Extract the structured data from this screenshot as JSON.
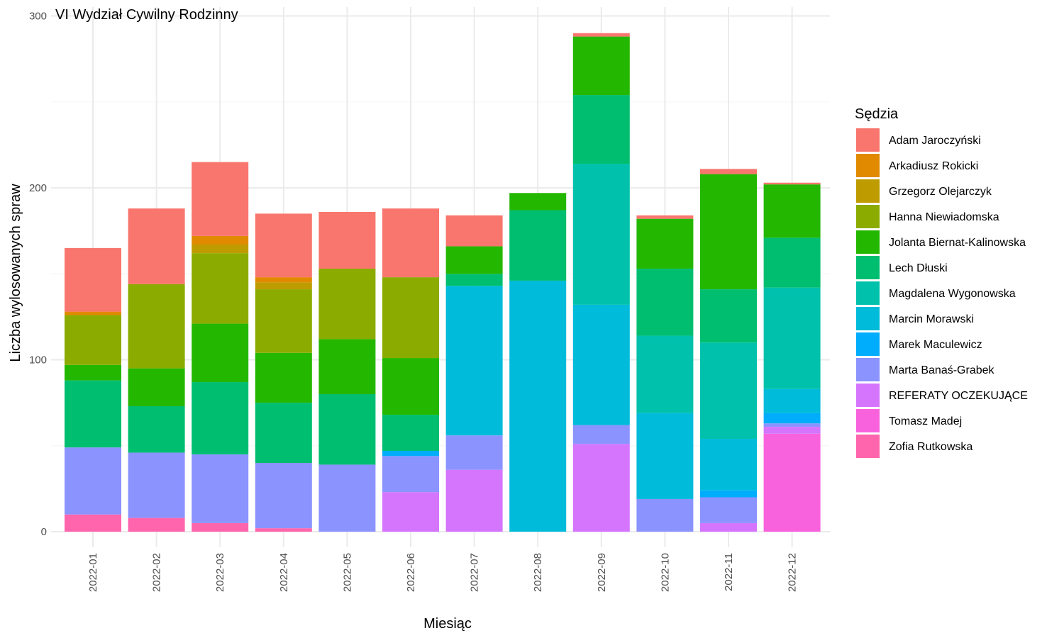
{
  "chart_data": {
    "type": "bar",
    "stacked": true,
    "title": "VI Wydział Cywilny Rodzinny",
    "xlabel": "Miesiąc",
    "ylabel": "Liczba wylosowanych spraw",
    "ylim": [
      0,
      300
    ],
    "yticks": [
      0,
      100,
      200,
      300
    ],
    "grid": true,
    "legend_title": "Sędzia",
    "legend_position": "right",
    "categories": [
      "2022-01",
      "2022-02",
      "2022-03",
      "2022-04",
      "2022-05",
      "2022-06",
      "2022-07",
      "2022-08",
      "2022-09",
      "2022-10",
      "2022-11",
      "2022-12"
    ],
    "series": [
      {
        "name": "Adam Jaroczyński",
        "color": "#F8766D",
        "values": [
          37,
          44,
          43,
          37,
          33,
          40,
          18,
          0,
          2,
          2,
          3,
          1
        ]
      },
      {
        "name": "Arkadiusz Rokicki",
        "color": "#E18A00",
        "values": [
          2,
          0,
          5,
          3,
          0,
          0,
          0,
          0,
          0,
          0,
          0,
          0
        ]
      },
      {
        "name": "Grzegorz Olejarczyk",
        "color": "#BE9C00",
        "values": [
          0,
          0,
          5,
          4,
          0,
          0,
          0,
          0,
          0,
          0,
          0,
          0
        ]
      },
      {
        "name": "Hanna Niewiadomska",
        "color": "#8CAB00",
        "values": [
          29,
          49,
          41,
          37,
          41,
          47,
          0,
          0,
          0,
          0,
          0,
          0
        ]
      },
      {
        "name": "Jolanta Biernat-Kalinowska",
        "color": "#24B700",
        "values": [
          9,
          22,
          34,
          29,
          32,
          33,
          16,
          10,
          34,
          29,
          67,
          31
        ]
      },
      {
        "name": "Lech Dłuski",
        "color": "#00BE70",
        "values": [
          39,
          27,
          42,
          35,
          41,
          21,
          7,
          41,
          40,
          39,
          31,
          29
        ]
      },
      {
        "name": "Magdalena Wygonowska",
        "color": "#00C1AB",
        "values": [
          0,
          0,
          0,
          0,
          0,
          0,
          0,
          0,
          82,
          45,
          56,
          59
        ]
      },
      {
        "name": "Marcin Morawski",
        "color": "#00BBDA",
        "values": [
          0,
          0,
          0,
          0,
          0,
          0,
          87,
          146,
          70,
          50,
          30,
          14
        ]
      },
      {
        "name": "Marek Maculewicz",
        "color": "#00ACFC",
        "values": [
          0,
          0,
          0,
          0,
          0,
          3,
          0,
          0,
          0,
          0,
          4,
          6
        ]
      },
      {
        "name": "Marta Banaś-Grabek",
        "color": "#8B93FF",
        "values": [
          39,
          38,
          40,
          38,
          39,
          21,
          20,
          0,
          11,
          19,
          15,
          2
        ]
      },
      {
        "name": "REFERATY OCZEKUJĄCE",
        "color": "#D575FE",
        "values": [
          0,
          0,
          0,
          0,
          0,
          23,
          36,
          0,
          51,
          0,
          5,
          4
        ]
      },
      {
        "name": "Tomasz Madej",
        "color": "#F962DD",
        "values": [
          0,
          0,
          0,
          0,
          0,
          0,
          0,
          0,
          0,
          0,
          0,
          57
        ]
      },
      {
        "name": "Zofia Rutkowska",
        "color": "#FF65AC",
        "values": [
          10,
          8,
          5,
          2,
          0,
          0,
          0,
          0,
          0,
          0,
          0,
          0
        ]
      }
    ]
  }
}
